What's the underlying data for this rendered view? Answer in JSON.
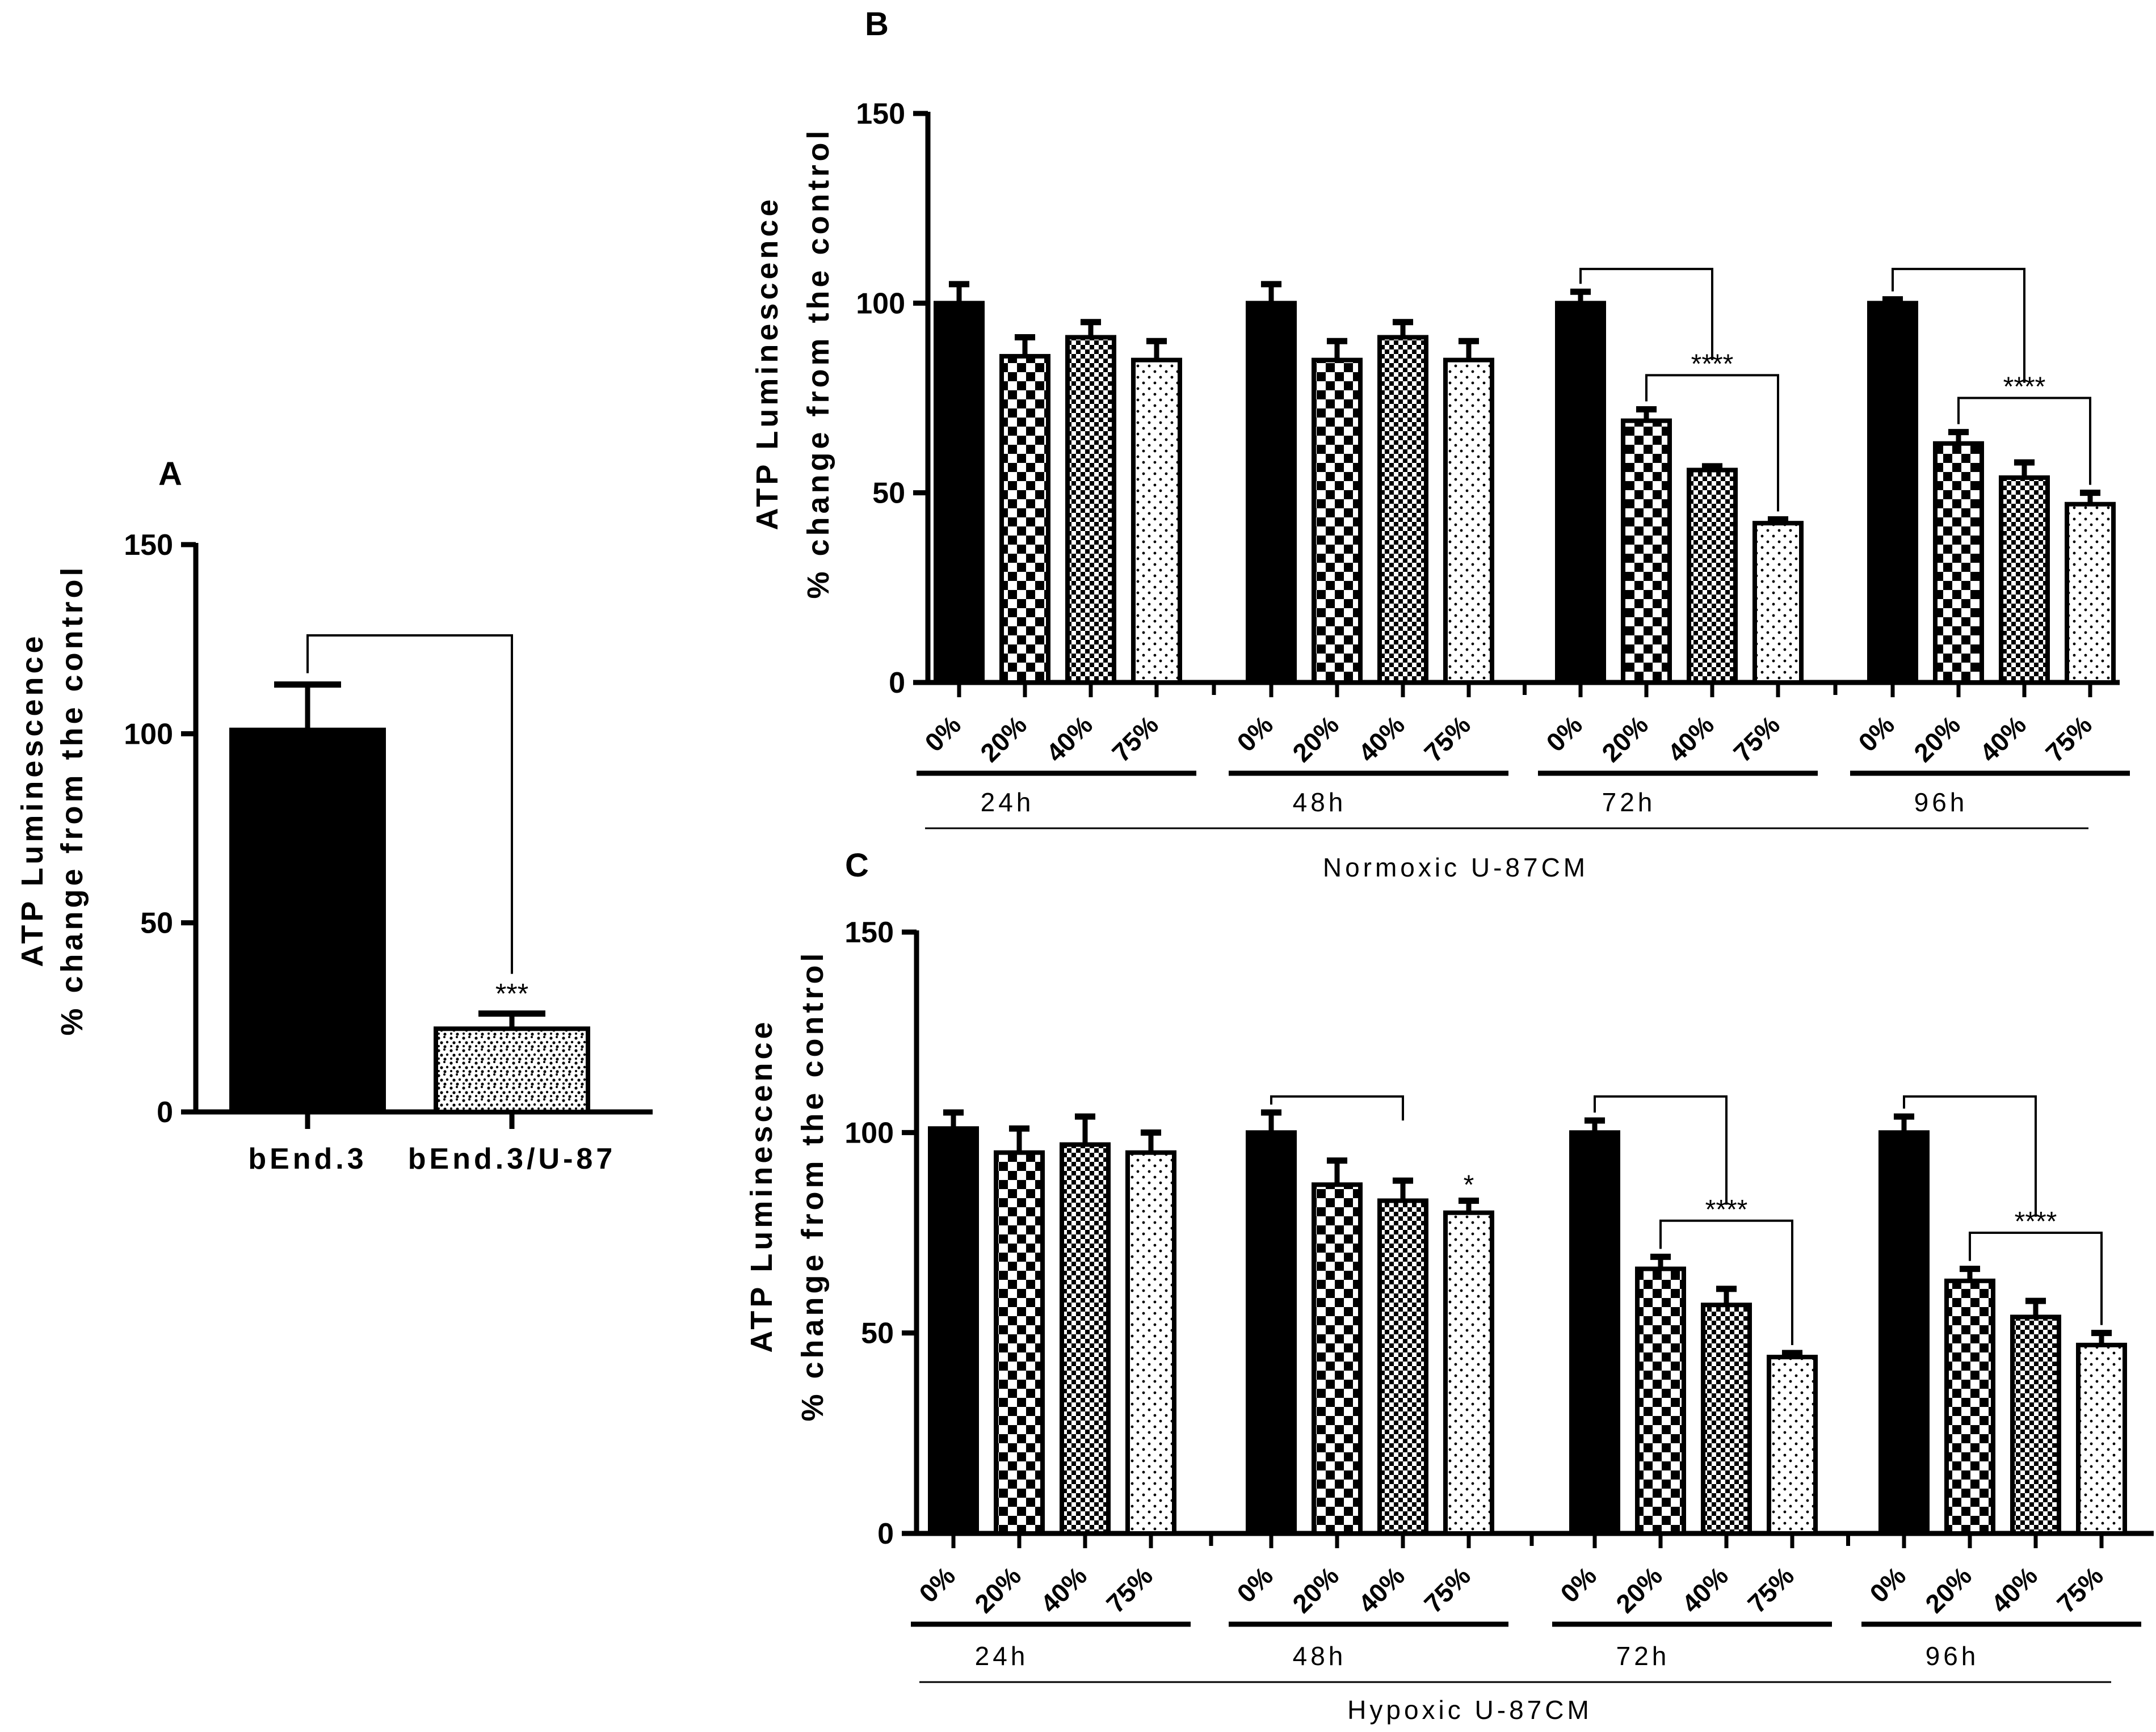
{
  "chart_data": [
    {
      "panel": "A",
      "type": "bar",
      "ylabel_line1": "ATP Luminescence",
      "ylabel_line2": "% change from the control",
      "ylim": [
        0,
        150
      ],
      "yticks": [
        0,
        50,
        100,
        150
      ],
      "categories": [
        "bEnd.3",
        "bEnd.3/U-87"
      ],
      "values": [
        101,
        22
      ],
      "errors": [
        12,
        4
      ],
      "patterns": [
        "solid",
        "speckle"
      ],
      "comparisons": [
        {
          "from": 0,
          "to": 1,
          "label": "***"
        }
      ]
    },
    {
      "panel": "B",
      "type": "bar",
      "ylabel_line1": "ATP Luminescence",
      "ylabel_line2": "% change from the control",
      "ylim": [
        0,
        150
      ],
      "yticks": [
        0,
        50,
        100,
        150
      ],
      "condition": "Normoxic U-87CM",
      "patterns": [
        "solid",
        "checker",
        "checker-fine",
        "dots"
      ],
      "groups": [
        {
          "label": "24h",
          "categories": [
            "0%",
            "20%",
            "40%",
            "75%"
          ],
          "values": [
            100,
            86,
            91,
            85
          ],
          "errors": [
            5,
            5,
            4,
            5
          ],
          "stars": [
            "",
            "",
            "",
            ""
          ],
          "bracket": null
        },
        {
          "label": "48h",
          "categories": [
            "0%",
            "20%",
            "40%",
            "75%"
          ],
          "values": [
            100,
            85,
            91,
            85
          ],
          "errors": [
            5,
            5,
            4,
            5
          ],
          "stars": [
            "",
            "",
            "",
            ""
          ],
          "bracket": null
        },
        {
          "label": "72h",
          "categories": [
            "0%",
            "20%",
            "40%",
            "75%"
          ],
          "values": [
            100,
            69,
            56,
            42
          ],
          "errors": [
            3,
            3,
            1,
            1
          ],
          "stars": [
            "",
            "",
            "",
            ""
          ],
          "bracket": {
            "label": "****"
          }
        },
        {
          "label": "96h",
          "categories": [
            "0%",
            "20%",
            "40%",
            "75%"
          ],
          "values": [
            100,
            63,
            54,
            47
          ],
          "errors": [
            1,
            3,
            4,
            3
          ],
          "stars": [
            "",
            "",
            "",
            ""
          ],
          "bracket": {
            "label": "****"
          }
        }
      ]
    },
    {
      "panel": "C",
      "type": "bar",
      "ylabel_line1": "ATP Luminescence",
      "ylabel_line2": "% change from the control",
      "ylim": [
        0,
        150
      ],
      "yticks": [
        0,
        50,
        100,
        150
      ],
      "condition": "Hypoxic U-87CM",
      "patterns": [
        "solid",
        "checker",
        "checker-fine",
        "dots"
      ],
      "groups": [
        {
          "label": "24h",
          "categories": [
            "0%",
            "20%",
            "40%",
            "75%"
          ],
          "values": [
            101,
            95,
            97,
            95
          ],
          "errors": [
            4,
            6,
            7,
            5
          ],
          "stars": [
            "",
            "",
            "",
            ""
          ],
          "bracket": null
        },
        {
          "label": "48h",
          "categories": [
            "0%",
            "20%",
            "40%",
            "75%"
          ],
          "values": [
            100,
            87,
            83,
            80
          ],
          "errors": [
            5,
            6,
            5,
            3
          ],
          "stars": [
            "",
            "",
            "",
            "*"
          ],
          "bracket": {
            "label": ""
          }
        },
        {
          "label": "72h",
          "categories": [
            "0%",
            "20%",
            "40%",
            "75%"
          ],
          "values": [
            100,
            66,
            57,
            44
          ],
          "errors": [
            3,
            3,
            4,
            1
          ],
          "stars": [
            "",
            "",
            "",
            ""
          ],
          "bracket": {
            "label": "****"
          }
        },
        {
          "label": "96h",
          "categories": [
            "0%",
            "20%",
            "40%",
            "75%"
          ],
          "values": [
            100,
            63,
            54,
            47
          ],
          "errors": [
            4,
            3,
            4,
            3
          ],
          "stars": [
            "",
            "",
            "",
            ""
          ],
          "bracket": {
            "label": "****"
          }
        }
      ]
    }
  ]
}
